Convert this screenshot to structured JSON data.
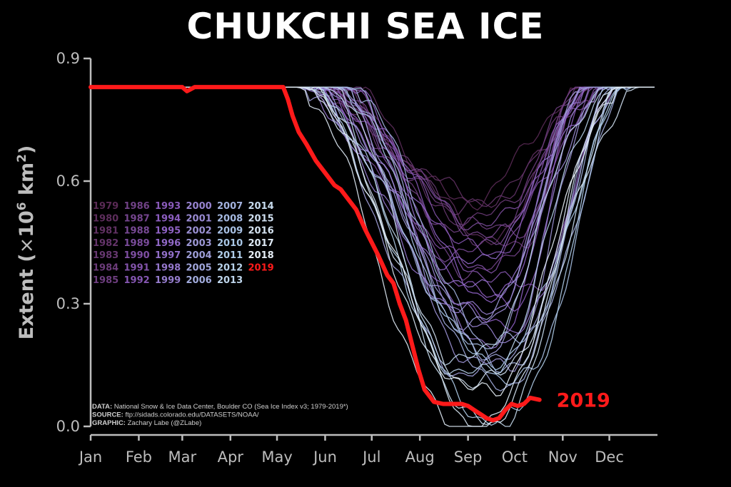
{
  "chart_data": {
    "type": "line",
    "title": "CHUKCHI SEA ICE",
    "ylabel": "Extent (×10⁶ km²)",
    "ylabel_parts": {
      "pre": "Extent (",
      "times": "×",
      "base": "10",
      "exp": "6",
      "unit": " km",
      "unit_exp": "2",
      "post": ")"
    },
    "ylim": [
      0.0,
      0.9
    ],
    "yticks": [
      "0.0",
      "0.3",
      "0.6",
      "0.9"
    ],
    "xlim": [
      1,
      366
    ],
    "xticks": [
      {
        "label": "Jan",
        "day": 1
      },
      {
        "label": "Feb",
        "day": 32
      },
      {
        "label": "Mar",
        "day": 60
      },
      {
        "label": "Apr",
        "day": 91
      },
      {
        "label": "May",
        "day": 121
      },
      {
        "label": "Jun",
        "day": 152
      },
      {
        "label": "Jul",
        "day": 182
      },
      {
        "label": "Aug",
        "day": 213
      },
      {
        "label": "Sep",
        "day": 244
      },
      {
        "label": "Oct",
        "day": 274
      },
      {
        "label": "Nov",
        "day": 305
      },
      {
        "label": "Dec",
        "day": 335
      }
    ],
    "grid": false,
    "legend_placement": "center-left",
    "colors": {
      "highlight": "#ff1a1a",
      "old": "#5a2a55",
      "mid": "#8e5fc4",
      "recent": "#a9c8e6",
      "newest": "#e6eef6"
    },
    "series_2019": {
      "name": "2019",
      "x": [
        1,
        60,
        63,
        68,
        125,
        128,
        131,
        135,
        140,
        146,
        152,
        158,
        162,
        168,
        172,
        178,
        182,
        186,
        192,
        196,
        200,
        204,
        208,
        212,
        216,
        222,
        228,
        234,
        240,
        244,
        248,
        252,
        256,
        260,
        264,
        266,
        268,
        272,
        276,
        280,
        284,
        290
      ],
      "y": [
        0.83,
        0.83,
        0.82,
        0.83,
        0.83,
        0.8,
        0.76,
        0.72,
        0.69,
        0.65,
        0.62,
        0.59,
        0.58,
        0.55,
        0.53,
        0.48,
        0.45,
        0.42,
        0.37,
        0.35,
        0.3,
        0.26,
        0.2,
        0.14,
        0.09,
        0.06,
        0.055,
        0.055,
        0.055,
        0.05,
        0.04,
        0.03,
        0.02,
        0.015,
        0.02,
        0.03,
        0.04,
        0.055,
        0.05,
        0.055,
        0.07,
        0.065
      ]
    },
    "legend_years": [
      [
        "1979",
        "1980",
        "1981",
        "1982",
        "1983",
        "1984",
        "1985"
      ],
      [
        "1986",
        "1987",
        "1988",
        "1989",
        "1990",
        "1991",
        "1992"
      ],
      [
        "1993",
        "1994",
        "1995",
        "1996",
        "1997",
        "1998",
        "1999"
      ],
      [
        "2000",
        "2001",
        "2002",
        "2003",
        "2004",
        "2005",
        "2006"
      ],
      [
        "2007",
        "2008",
        "2009",
        "2010",
        "2011",
        "2012",
        "2013"
      ],
      [
        "2014",
        "2015",
        "2016",
        "2017",
        "2018",
        "2019"
      ]
    ],
    "annotation_2019": "2019",
    "credits": [
      {
        "key": "DATA:",
        "text": " National Snow & Ice Data Center, Boulder CO (Sea Ice Index v3; 1979-2019*)"
      },
      {
        "key": "SOURCE:",
        "text": " ftp://sidads.colorado.edu/DATASETS/NOAA/"
      },
      {
        "key": "GRAPHIC:",
        "text": " Zachary Labe (@ZLabe)"
      }
    ]
  }
}
